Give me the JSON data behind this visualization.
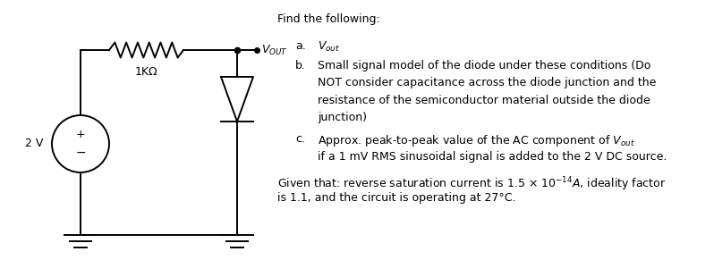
{
  "background_color": "#ffffff",
  "title_text": "Find the following:",
  "item_a_label": "a.",
  "item_a_math": "$V_{out}$",
  "item_b_label": "b.",
  "item_b_line1": "Small signal model of the diode under these conditions (Do",
  "item_b_line2": "NOT consider capacitance across the diode junction and the",
  "item_b_line3": "resistance of the semiconductor material outside the diode",
  "item_b_line4": "junction)",
  "item_c_label": "c.",
  "item_c_line1": "Approx. peak-to-peak value of the AC component of $V_{out}$",
  "item_c_line2": "if a 1 mV RMS sinusoidal signal is added to the 2 V DC source.",
  "given_line1": "Given that: reverse saturation current is 1.5 $\\times$ $10^{-14}$$A$, ideality factor",
  "given_line2": "is 1.1, and the circuit is operating at 27°C.",
  "voltage_label": "2 V",
  "resistor_label": "1KΩ",
  "vout_label": "$V_{OUT}$",
  "font_size_body": 9.0,
  "text_color": "#000000",
  "circuit_color": "#000000",
  "fig_width": 7.98,
  "fig_height": 2.91,
  "dpi": 100
}
